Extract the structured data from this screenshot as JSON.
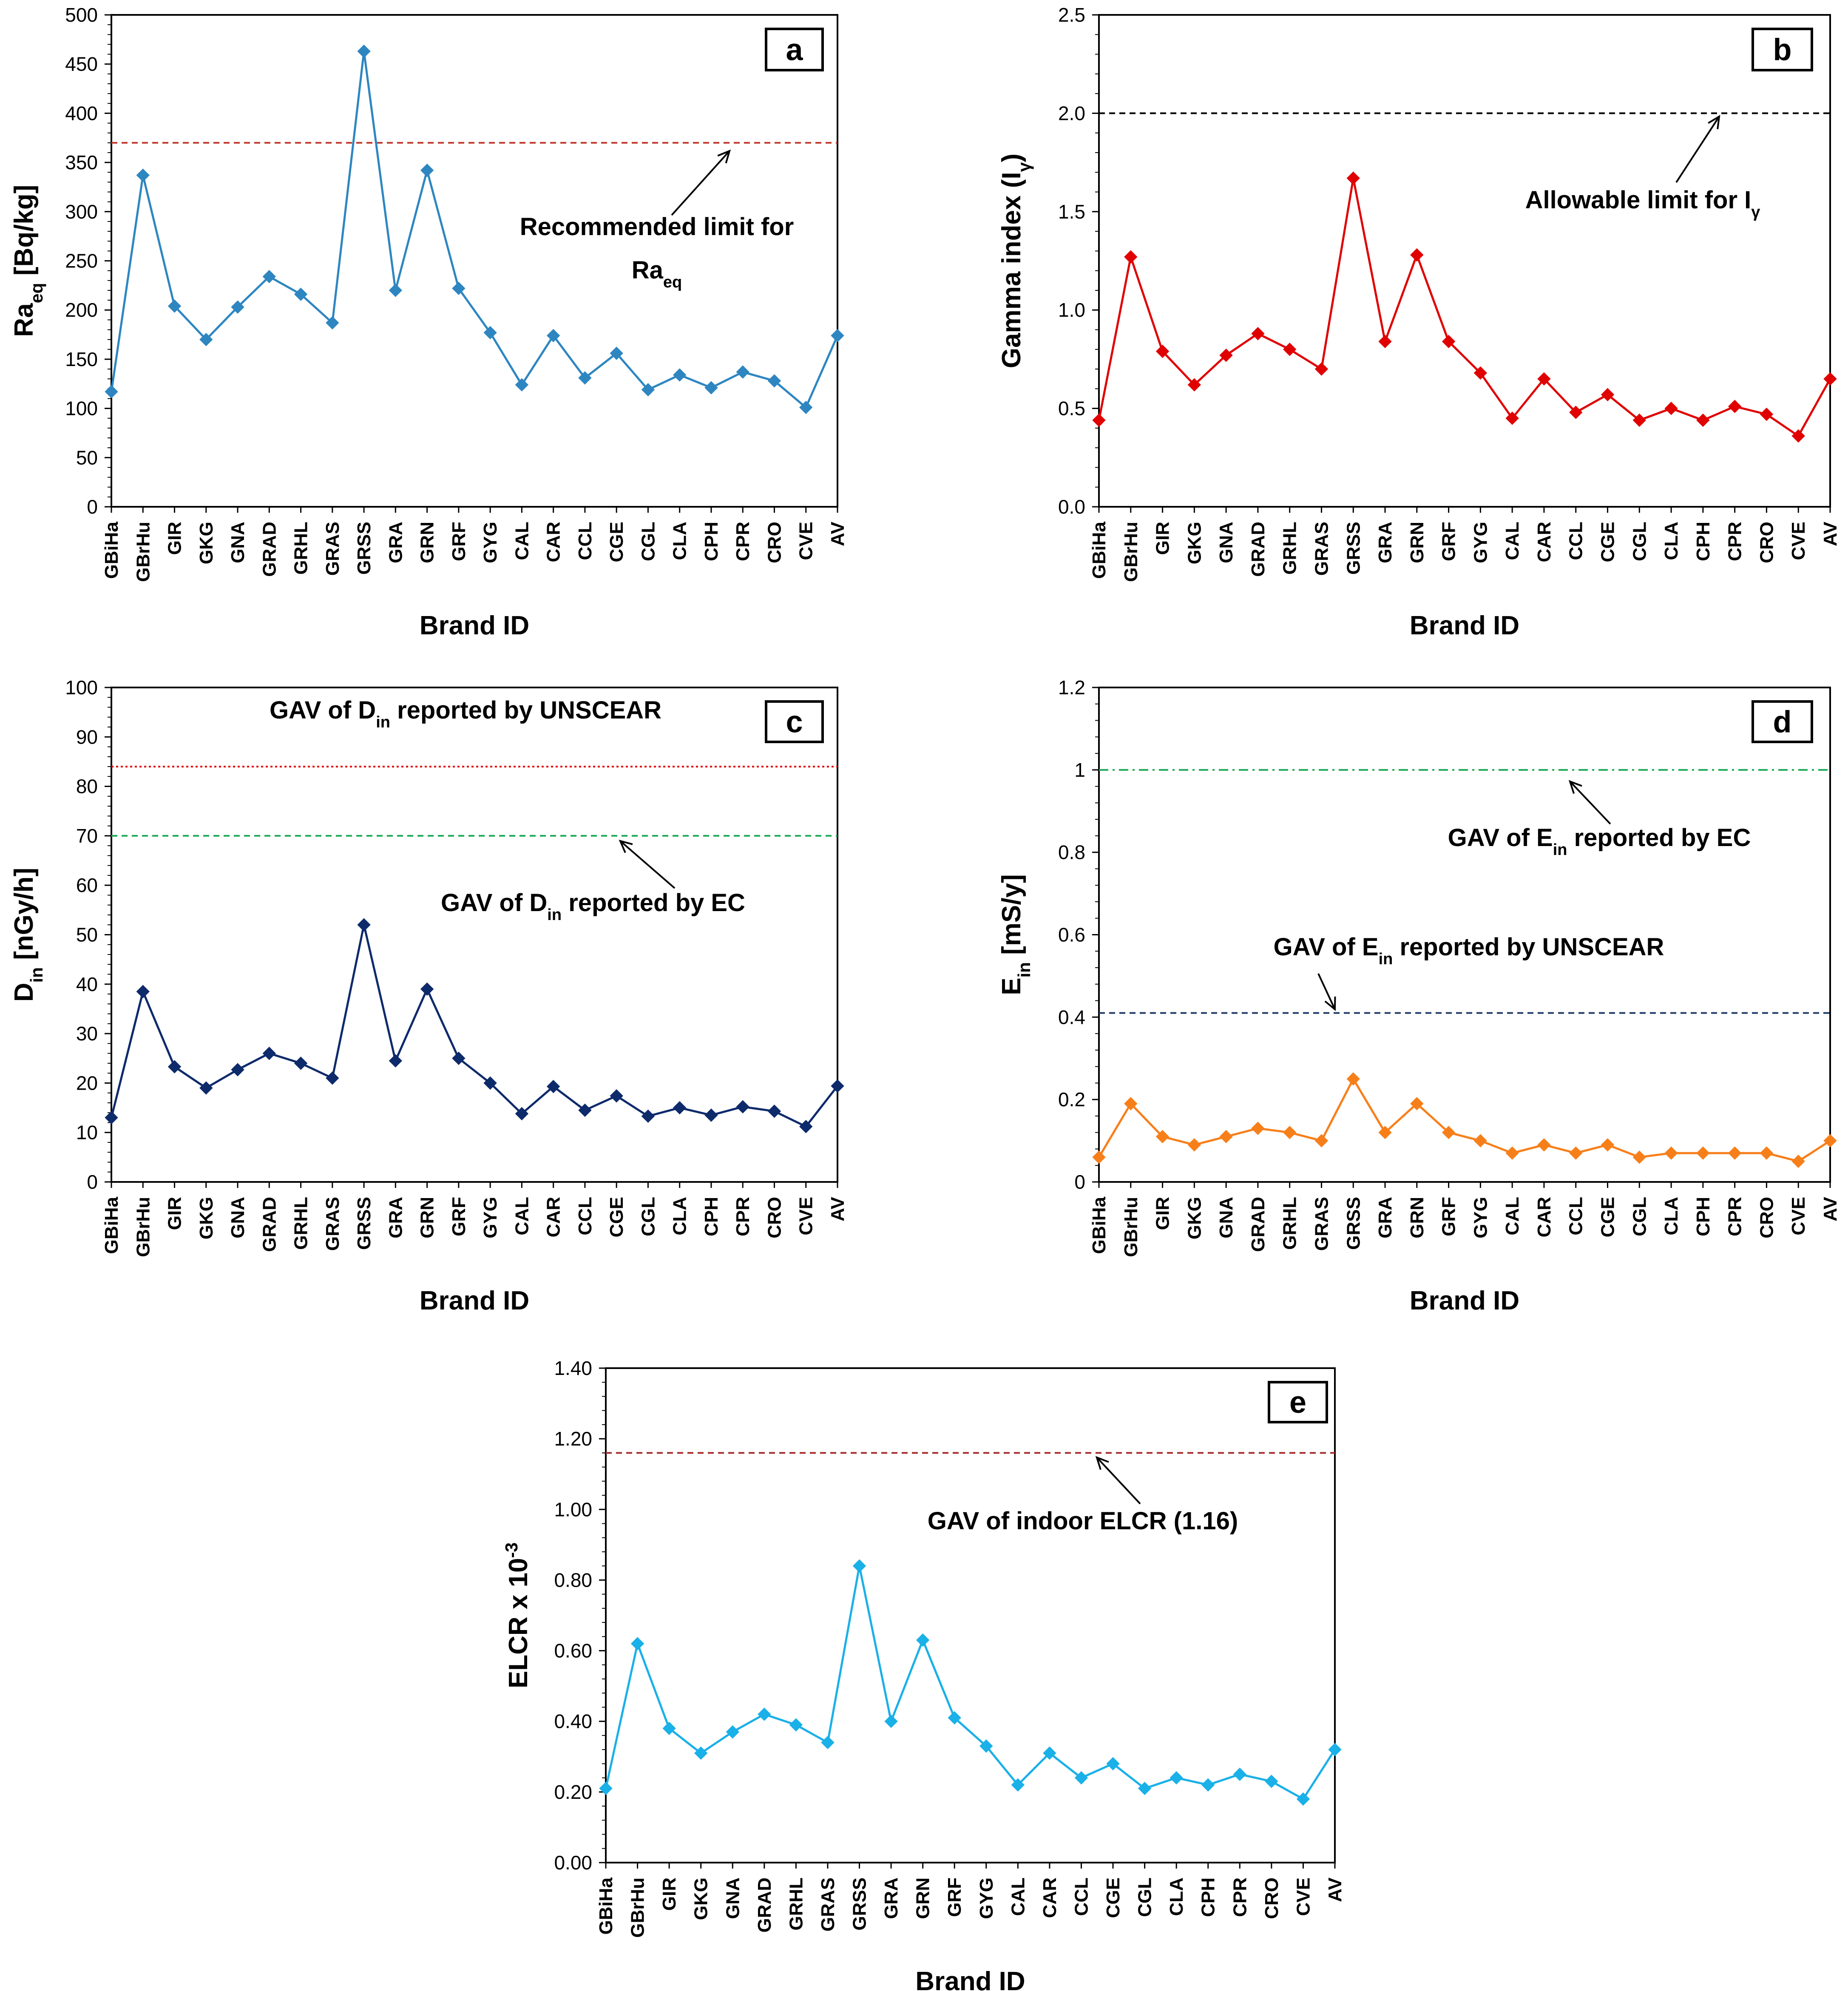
{
  "chart_data": [
    {
      "type": "line",
      "panel_label": "a",
      "categories": [
        "GBiHa",
        "GBrHu",
        "GIR",
        "GKG",
        "GNA",
        "GRAD",
        "GRHL",
        "GRAS",
        "GRSS",
        "GRA",
        "GRN",
        "GRF",
        "GYG",
        "CAL",
        "CAR",
        "CCL",
        "CGE",
        "CGL",
        "CLA",
        "CPH",
        "CPR",
        "CRO",
        "CVE",
        "AV"
      ],
      "series": [
        {
          "name": "Raeq",
          "color": "#2e86c1",
          "values": [
            117,
            337,
            204,
            170,
            203,
            234,
            216,
            187,
            463,
            220,
            342,
            222,
            177,
            124,
            174,
            131,
            156,
            119,
            134,
            121,
            137,
            128,
            101,
            174
          ]
        }
      ],
      "ylabel": {
        "main": "Ra",
        "sub": "eq",
        "rest": " [Bq/kg]"
      },
      "xlabel": "Brand ID",
      "ylim": [
        0,
        500
      ],
      "ytick_labels": [
        "0",
        "50",
        "100",
        "150",
        "200",
        "250",
        "300",
        "350",
        "400",
        "450",
        "500"
      ],
      "reference_lines": [
        {
          "value": 370,
          "color": "#c0392b",
          "style": "dashed"
        }
      ],
      "annotation_lines": [
        {
          "parts": [
            {
              "t": "Recommended limit for"
            }
          ]
        },
        {
          "parts": [
            {
              "t": "Ra"
            },
            {
              "t": "eq",
              "sub": true
            }
          ]
        }
      ]
    },
    {
      "type": "line",
      "panel_label": "b",
      "categories": [
        "GBiHa",
        "GBrHu",
        "GIR",
        "GKG",
        "GNA",
        "GRAD",
        "GRHL",
        "GRAS",
        "GRSS",
        "GRA",
        "GRN",
        "GRF",
        "GYG",
        "CAL",
        "CAR",
        "CCL",
        "CGE",
        "CGL",
        "CLA",
        "CPH",
        "CPR",
        "CRO",
        "CVE",
        "AV"
      ],
      "series": [
        {
          "name": "Iγ",
          "color": "#e00000",
          "values": [
            0.44,
            1.27,
            0.79,
            0.62,
            0.77,
            0.88,
            0.8,
            0.7,
            1.67,
            0.84,
            1.28,
            0.84,
            0.68,
            0.45,
            0.65,
            0.48,
            0.57,
            0.44,
            0.5,
            0.44,
            0.51,
            0.47,
            0.36,
            0.65
          ]
        }
      ],
      "ylabel": {
        "main": "Gamma index (I",
        "sub": "γ",
        "rest": ")"
      },
      "xlabel": "Brand ID",
      "ylim": [
        0,
        2.5
      ],
      "ytick_labels": [
        "0.0",
        "0.5",
        "1.0",
        "1.5",
        "2.0",
        "2.5"
      ],
      "reference_lines": [
        {
          "value": 2.0,
          "color": "#000000",
          "style": "dashed"
        }
      ],
      "annotation_lines": [
        {
          "parts": [
            {
              "t": "Allowable limit for I"
            },
            {
              "t": "γ",
              "sub": true
            }
          ]
        }
      ]
    },
    {
      "type": "line",
      "panel_label": "c",
      "categories": [
        "GBiHa",
        "GBrHu",
        "GIR",
        "GKG",
        "GNA",
        "GRAD",
        "GRHL",
        "GRAS",
        "GRSS",
        "GRA",
        "GRN",
        "GRF",
        "GYG",
        "CAL",
        "CAR",
        "CCL",
        "CGE",
        "CGL",
        "CLA",
        "CPH",
        "CPR",
        "CRO",
        "CVE",
        "AV"
      ],
      "series": [
        {
          "name": "Din",
          "color": "#0d2a6b",
          "values": [
            13.0,
            38.5,
            23.3,
            19.0,
            22.7,
            26.0,
            24.0,
            21.0,
            52.0,
            24.5,
            39.0,
            25.0,
            20.0,
            13.8,
            19.3,
            14.5,
            17.4,
            13.3,
            15.0,
            13.5,
            15.2,
            14.3,
            11.2,
            19.4
          ]
        }
      ],
      "ylabel": {
        "main": "D",
        "sub": "in",
        "rest": " [nGy/h]"
      },
      "xlabel": "Brand ID",
      "ylim": [
        0,
        100
      ],
      "ytick_labels": [
        "0",
        "10",
        "20",
        "30",
        "40",
        "50",
        "60",
        "70",
        "80",
        "90",
        "100"
      ],
      "reference_lines": [
        {
          "value": 84,
          "color": "#e00000",
          "style": "dotted"
        },
        {
          "value": 70,
          "color": "#1aaa55",
          "style": "dashed"
        }
      ],
      "annotation_lines": [
        {
          "parts": [
            {
              "t": "GAV of D"
            },
            {
              "t": "in",
              "sub": true
            },
            {
              "t": " reported by UNSCEAR"
            }
          ]
        },
        {
          "parts": [
            {
              "t": "GAV of D"
            },
            {
              "t": "in",
              "sub": true
            },
            {
              "t": " reported by EC"
            }
          ]
        }
      ]
    },
    {
      "type": "line",
      "panel_label": "d",
      "categories": [
        "GBiHa",
        "GBrHu",
        "GIR",
        "GKG",
        "GNA",
        "GRAD",
        "GRHL",
        "GRAS",
        "GRSS",
        "GRA",
        "GRN",
        "GRF",
        "GYG",
        "CAL",
        "CAR",
        "CCL",
        "CGE",
        "CGL",
        "CLA",
        "CPH",
        "CPR",
        "CRO",
        "CVE",
        "AV"
      ],
      "series": [
        {
          "name": "Ein",
          "color": "#f77f1a",
          "values": [
            0.06,
            0.19,
            0.11,
            0.09,
            0.11,
            0.13,
            0.12,
            0.1,
            0.25,
            0.12,
            0.19,
            0.12,
            0.1,
            0.07,
            0.09,
            0.07,
            0.09,
            0.06,
            0.07,
            0.07,
            0.07,
            0.07,
            0.05,
            0.1
          ]
        }
      ],
      "ylabel": {
        "main": "E",
        "sub": "in",
        "rest": " [mS/y]"
      },
      "xlabel": "Brand ID",
      "ylim": [
        0,
        1.2
      ],
      "ytick_labels": [
        "0",
        "0.2",
        "0.4",
        "0.6",
        "0.8",
        "1",
        "1.2"
      ],
      "reference_lines": [
        {
          "value": 1.0,
          "color": "#1aaa55",
          "style": "dashdot"
        },
        {
          "value": 0.41,
          "color": "#1f3a68",
          "style": "dashed"
        }
      ],
      "annotation_lines": [
        {
          "parts": [
            {
              "t": "GAV of E"
            },
            {
              "t": "in",
              "sub": true
            },
            {
              "t": " reported by EC"
            }
          ]
        },
        {
          "parts": [
            {
              "t": "GAV of E"
            },
            {
              "t": "in",
              "sub": true
            },
            {
              "t": " reported by UNSCEAR"
            }
          ]
        }
      ]
    },
    {
      "type": "line",
      "panel_label": "e",
      "categories": [
        "GBiHa",
        "GBrHu",
        "GIR",
        "GKG",
        "GNA",
        "GRAD",
        "GRHL",
        "GRAS",
        "GRSS",
        "GRA",
        "GRN",
        "GRF",
        "GYG",
        "CAL",
        "CAR",
        "CCL",
        "CGE",
        "CGL",
        "CLA",
        "CPH",
        "CPR",
        "CRO",
        "CVE",
        "AV"
      ],
      "series": [
        {
          "name": "ELCR",
          "color": "#1ab0e8",
          "values": [
            0.21,
            0.62,
            0.38,
            0.31,
            0.37,
            0.42,
            0.39,
            0.34,
            0.84,
            0.4,
            0.63,
            0.41,
            0.33,
            0.22,
            0.31,
            0.24,
            0.28,
            0.21,
            0.24,
            0.22,
            0.25,
            0.23,
            0.18,
            0.32
          ]
        }
      ],
      "ylabel": {
        "main": "ELCR x 10",
        "sup": "-3"
      },
      "xlabel": "Brand ID",
      "ylim": [
        0,
        1.4
      ],
      "ytick_labels": [
        "0.00",
        "0.20",
        "0.40",
        "0.60",
        "0.80",
        "1.00",
        "1.20",
        "1.40"
      ],
      "reference_lines": [
        {
          "value": 1.16,
          "color": "#a52a2a",
          "style": "dashed"
        }
      ],
      "annotation_lines": [
        {
          "parts": [
            {
              "t": "GAV of indoor ELCR (1.16)"
            }
          ]
        }
      ]
    }
  ]
}
